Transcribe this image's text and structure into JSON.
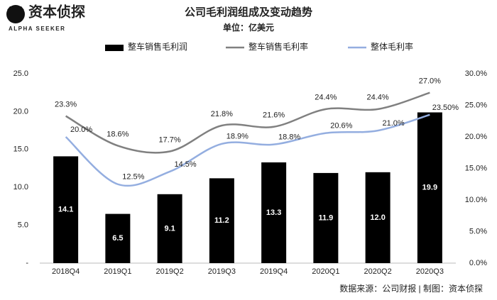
{
  "logo": {
    "name": "资本侦探",
    "tagline": "ALPHA SEEKER"
  },
  "chart_data": {
    "type": "bar-line",
    "title": "公司毛利润组成及变动趋势",
    "subtitle": "单位：亿美元",
    "source": "数据来源：公司财报 | 制图：资本侦探",
    "categories": [
      "2018Q4",
      "2019Q1",
      "2019Q2",
      "2019Q3",
      "2019Q4",
      "2020Q1",
      "2020Q2",
      "2020Q3"
    ],
    "series": [
      {
        "name": "整车销售毛利润",
        "color": "#000000",
        "kind": "bar",
        "values": [
          14.1,
          6.5,
          9.1,
          11.2,
          13.3,
          11.9,
          12.0,
          19.9
        ],
        "value_labels": [
          "14.1",
          "6.5",
          "9.1",
          "11.2",
          "13.3",
          "11.9",
          "12.0",
          "19.9"
        ]
      },
      {
        "name": "整车销售毛利率",
        "color": "#808080",
        "kind": "line",
        "axis": "y2",
        "values": [
          23.3,
          18.6,
          17.7,
          21.8,
          21.6,
          24.4,
          24.4,
          27.0
        ],
        "value_labels": [
          "23.3%",
          "18.6%",
          "17.7%",
          "21.8%",
          "21.6%",
          "24.4%",
          "24.4%",
          "27.0%"
        ]
      },
      {
        "name": "整体毛利率",
        "color": "#94aee0",
        "kind": "line",
        "axis": "y2",
        "values": [
          20.0,
          12.5,
          14.5,
          18.9,
          18.8,
          20.6,
          21.0,
          23.5
        ],
        "value_labels": [
          "20.0%",
          "12.5%",
          "14.5%",
          "18.9%",
          "18.8%",
          "20.6%",
          "21.0%",
          "23.50%"
        ]
      }
    ],
    "ylim": [
      0,
      25
    ],
    "yticks": [
      {
        "value": 0,
        "label": "-"
      },
      {
        "value": 5,
        "label": "5.0"
      },
      {
        "value": 10,
        "label": "10.0"
      },
      {
        "value": 15,
        "label": "15.0"
      },
      {
        "value": 20,
        "label": "20.0"
      },
      {
        "value": 25,
        "label": "25.0"
      }
    ],
    "y2lim": [
      0,
      30
    ],
    "y2ticks": [
      {
        "value": 0,
        "label": "0.0%"
      },
      {
        "value": 5,
        "label": "5.0%"
      },
      {
        "value": 10,
        "label": "10.0%"
      },
      {
        "value": 15,
        "label": "15.0%"
      },
      {
        "value": 20,
        "label": "20.0%"
      },
      {
        "value": 25,
        "label": "25.0%"
      },
      {
        "value": 30,
        "label": "30.0%"
      }
    ]
  }
}
